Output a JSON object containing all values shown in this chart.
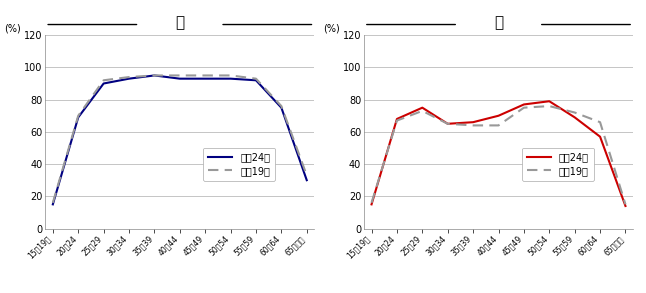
{
  "categories": [
    "15～19歳",
    "20～24",
    "25～29",
    "30～34",
    "35～39",
    "40～44",
    "45～49",
    "50～54",
    "55～59",
    "60～64",
    "65歳以上"
  ],
  "male_2012": [
    15,
    69,
    90,
    93,
    95,
    93,
    93,
    93,
    92,
    75,
    30
  ],
  "male_2007": [
    16,
    70,
    92,
    94,
    95,
    95,
    95,
    95,
    93,
    76,
    33
  ],
  "female_2012": [
    15,
    68,
    75,
    65,
    66,
    70,
    77,
    79,
    69,
    57,
    14
  ],
  "female_2007": [
    16,
    67,
    73,
    65,
    64,
    64,
    75,
    76,
    72,
    66,
    15
  ],
  "title_male": "男",
  "title_female": "女",
  "ylabel": "(%)",
  "legend_2012": "平成24年",
  "legend_2007": "平成19年",
  "ylim": [
    0,
    120
  ],
  "yticks": [
    0,
    20,
    40,
    60,
    80,
    100,
    120
  ],
  "male_line_color": "#000080",
  "female_line_color": "#CC0000",
  "dashed_color": "#999999",
  "bg_color": "#ffffff",
  "grid_color": "#bbbbbb"
}
